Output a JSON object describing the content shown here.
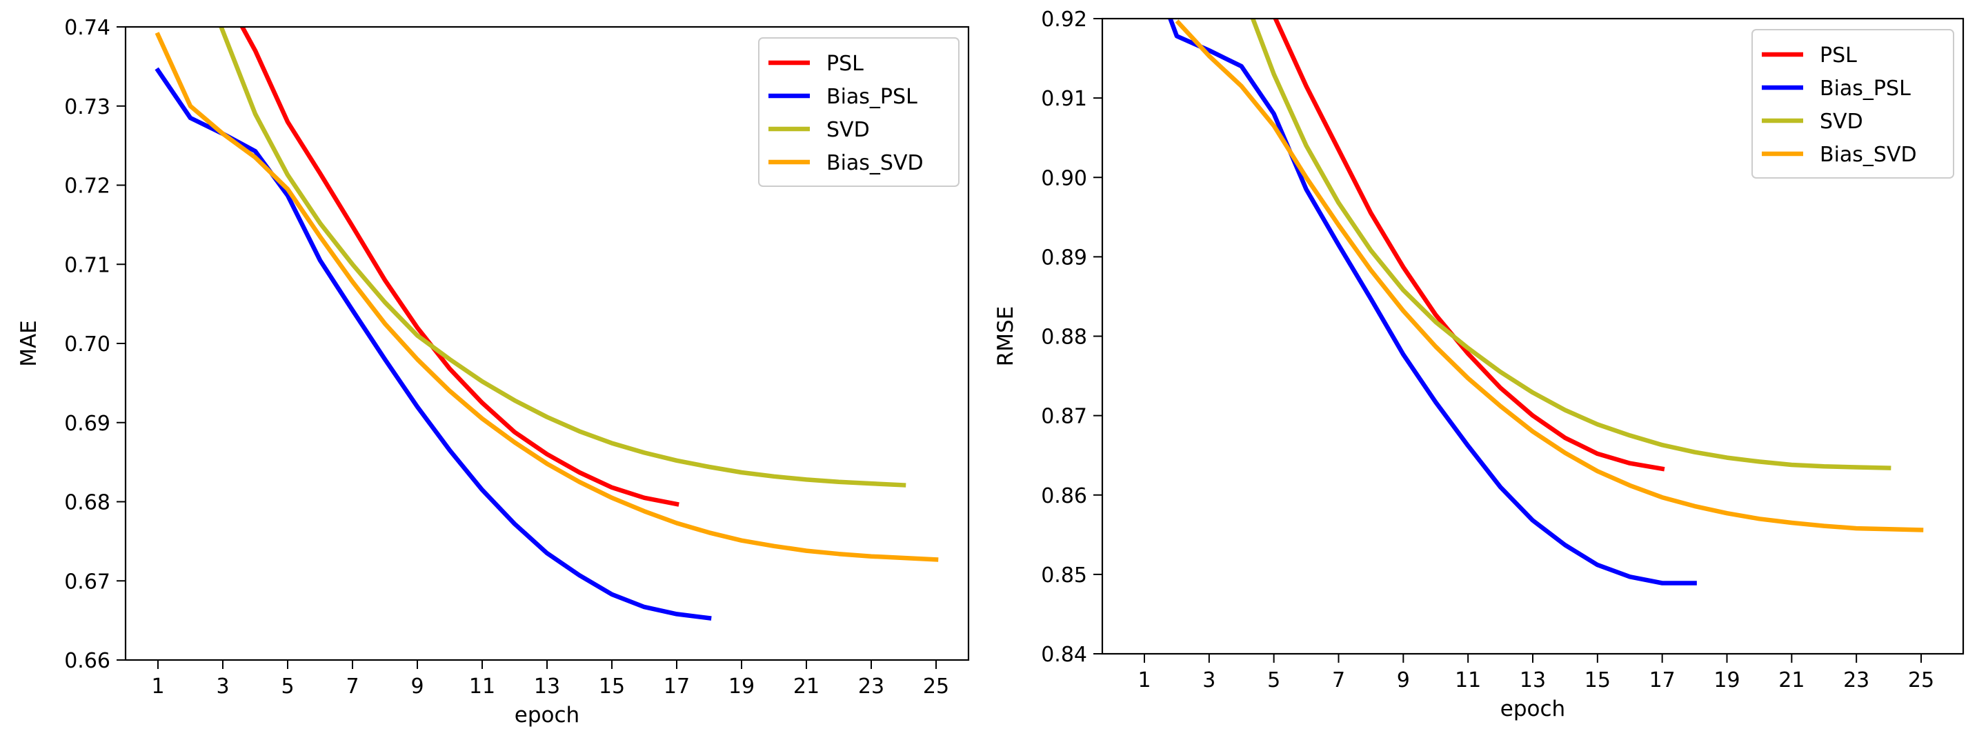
{
  "chart_data": [
    {
      "type": "line",
      "title": "",
      "xlabel": "epoch",
      "ylabel": "MAE",
      "xlim": [
        0,
        26
      ],
      "ylim": [
        0.66,
        0.74
      ],
      "xticks": [
        1,
        3,
        5,
        7,
        9,
        11,
        13,
        15,
        17,
        19,
        21,
        23,
        25
      ],
      "yticks": [
        0.66,
        0.67,
        0.68,
        0.69,
        0.7,
        0.71,
        0.72,
        0.73,
        0.74
      ],
      "ytick_labels": [
        "0.66",
        "0.67",
        "0.68",
        "0.69",
        "0.70",
        "0.71",
        "0.72",
        "0.73",
        "0.74"
      ],
      "legend_position": "top-right",
      "series": [
        {
          "name": "PSL",
          "color": "#ff0000",
          "x": [
            3.6,
            4,
            5,
            6,
            7,
            8,
            9,
            10,
            11,
            12,
            13,
            14,
            15,
            16,
            17
          ],
          "y": [
            0.74,
            0.737,
            0.728,
            0.7215,
            0.7148,
            0.708,
            0.702,
            0.6968,
            0.6925,
            0.6888,
            0.686,
            0.6837,
            0.6818,
            0.6805,
            0.6797
          ]
        },
        {
          "name": "Bias_PSL",
          "color": "#0000ff",
          "x": [
            1,
            2,
            3,
            4,
            5,
            6,
            7,
            8,
            9,
            10,
            11,
            12,
            13,
            14,
            15,
            16,
            17,
            18
          ],
          "y": [
            0.7345,
            0.7285,
            0.7265,
            0.7243,
            0.7187,
            0.7105,
            0.7042,
            0.698,
            0.692,
            0.6865,
            0.6815,
            0.6772,
            0.6735,
            0.6707,
            0.6683,
            0.6667,
            0.6658,
            0.6653
          ]
        },
        {
          "name": "SVD",
          "color": "#bcbd22",
          "x": [
            2.95,
            4,
            5,
            6,
            7,
            8,
            9,
            10,
            11,
            12,
            13,
            14,
            15,
            16,
            17,
            18,
            19,
            20,
            21,
            22,
            23,
            24
          ],
          "y": [
            0.74,
            0.729,
            0.7213,
            0.7152,
            0.71,
            0.7052,
            0.701,
            0.698,
            0.6952,
            0.6928,
            0.6907,
            0.6889,
            0.6874,
            0.6862,
            0.6852,
            0.6844,
            0.6837,
            0.6832,
            0.6828,
            0.6825,
            0.6823,
            0.6821
          ]
        },
        {
          "name": "Bias_SVD",
          "color": "#ffa500",
          "x": [
            1,
            2,
            3,
            4,
            5,
            6,
            7,
            8,
            9,
            10,
            11,
            12,
            13,
            14,
            15,
            16,
            17,
            18,
            19,
            20,
            21,
            22,
            23,
            24,
            25
          ],
          "y": [
            0.739,
            0.73,
            0.7265,
            0.7235,
            0.7195,
            0.7135,
            0.7078,
            0.7025,
            0.698,
            0.694,
            0.6905,
            0.6875,
            0.6848,
            0.6825,
            0.6805,
            0.6788,
            0.6773,
            0.6761,
            0.6751,
            0.6744,
            0.6738,
            0.6734,
            0.6731,
            0.6729,
            0.6727
          ]
        }
      ]
    },
    {
      "type": "line",
      "title": "",
      "xlabel": "epoch",
      "ylabel": "RMSE",
      "xlim": [
        -0.3,
        26.3
      ],
      "ylim": [
        0.84,
        0.92
      ],
      "xticks": [
        1,
        3,
        5,
        7,
        9,
        11,
        13,
        15,
        17,
        19,
        21,
        23,
        25
      ],
      "yticks": [
        0.84,
        0.85,
        0.86,
        0.87,
        0.88,
        0.89,
        0.9,
        0.91,
        0.92
      ],
      "ytick_labels": [
        "0.84",
        "0.85",
        "0.86",
        "0.87",
        "0.88",
        "0.89",
        "0.90",
        "0.91",
        "0.92"
      ],
      "legend_position": "top-right",
      "series": [
        {
          "name": "PSL",
          "color": "#ff0000",
          "x": [
            5.05,
            6,
            7,
            8,
            9,
            10,
            11,
            12,
            13,
            14,
            15,
            16,
            17
          ],
          "y": [
            0.92,
            0.9115,
            0.9035,
            0.8955,
            0.8887,
            0.8827,
            0.8778,
            0.8735,
            0.87,
            0.8672,
            0.8652,
            0.864,
            0.8633
          ]
        },
        {
          "name": "Bias_PSL",
          "color": "#0000ff",
          "x": [
            1.8,
            2,
            3,
            4,
            5,
            6,
            7,
            8,
            9,
            10,
            11,
            12,
            13,
            14,
            15,
            16,
            17,
            18
          ],
          "y": [
            0.92,
            0.9178,
            0.916,
            0.914,
            0.908,
            0.8985,
            0.8915,
            0.8847,
            0.8777,
            0.8717,
            0.8662,
            0.861,
            0.8568,
            0.8537,
            0.8512,
            0.8497,
            0.8489,
            0.8489
          ]
        },
        {
          "name": "SVD",
          "color": "#bcbd22",
          "x": [
            4.35,
            5,
            6,
            7,
            8,
            9,
            10,
            11,
            12,
            13,
            14,
            15,
            16,
            17,
            18,
            19,
            20,
            21,
            22,
            23,
            24
          ],
          "y": [
            0.92,
            0.913,
            0.904,
            0.8968,
            0.8908,
            0.8858,
            0.8818,
            0.8785,
            0.8755,
            0.8729,
            0.8707,
            0.8689,
            0.8675,
            0.8663,
            0.8654,
            0.8647,
            0.8642,
            0.8638,
            0.8636,
            0.8635,
            0.8634
          ]
        },
        {
          "name": "Bias_SVD",
          "color": "#ffa500",
          "x": [
            2.05,
            3,
            4,
            5,
            6,
            7,
            8,
            9,
            10,
            11,
            12,
            13,
            14,
            15,
            16,
            17,
            18,
            19,
            20,
            21,
            22,
            23,
            24,
            25
          ],
          "y": [
            0.9195,
            0.9153,
            0.9115,
            0.9065,
            0.9,
            0.894,
            0.8883,
            0.8832,
            0.8787,
            0.8747,
            0.8712,
            0.868,
            0.8653,
            0.863,
            0.8612,
            0.8597,
            0.8586,
            0.8577,
            0.857,
            0.8565,
            0.8561,
            0.8558,
            0.8557,
            0.8556
          ]
        }
      ]
    }
  ]
}
